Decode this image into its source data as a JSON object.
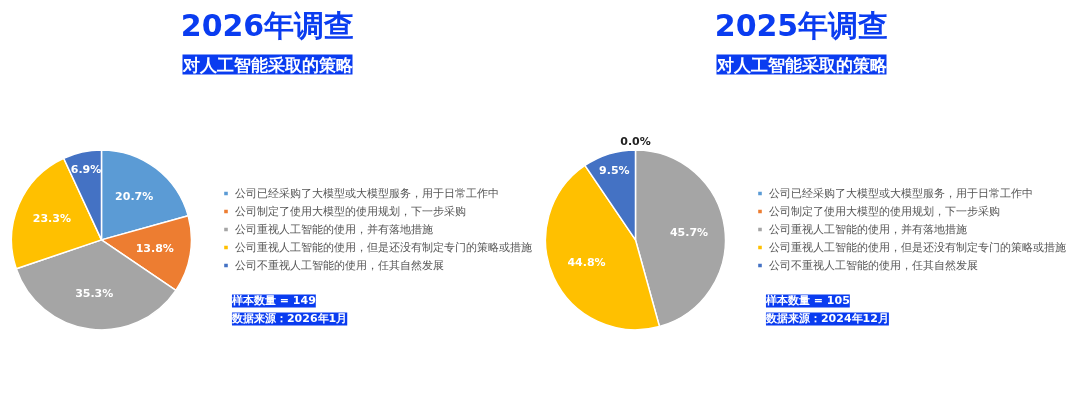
{
  "chart_data": [
    {
      "type": "pie",
      "title": "2026年调查",
      "subtitle": "对人工智能采取的策略",
      "categories": [
        "公司已经采购了大模型或大模型服务，用于日常工作中",
        "公司制定了使用大模型的使用规划，下一步采购",
        "公司重视人工智能的使用，并有落地措施",
        "公司重视人工智能的使用，但是还没有制定专门的策略或措施",
        "公司不重视人工智能的使用，任其自然发展"
      ],
      "values": [
        20.7,
        13.8,
        35.3,
        23.3,
        6.9
      ],
      "value_labels": [
        "20.7%",
        "13.8%",
        "35.3%",
        "23.3%",
        "6.9%"
      ],
      "colors": [
        "#5b9bd5",
        "#ed7d31",
        "#a5a5a5",
        "#ffc000",
        "#4472c4"
      ],
      "legend": "right",
      "annotations": [
        "样本数量 = 149",
        "数据来源：2026年1月"
      ]
    },
    {
      "type": "pie",
      "title": "2025年调查",
      "subtitle": "对人工智能采取的策略",
      "categories": [
        "公司已经采购了大模型或大模型服务，用于日常工作中",
        "公司制定了使用大模型的使用规划，下一步采购",
        "公司重视人工智能的使用，并有落地措施",
        "公司重视人工智能的使用，但是还没有制定专门的策略或措施",
        "公司不重视人工智能的使用，任其自然发展"
      ],
      "values": [
        0.0,
        0.0,
        45.7,
        44.8,
        9.5
      ],
      "value_labels": [
        "0.0%",
        null,
        "45.7%",
        "44.8%",
        "9.5%"
      ],
      "colors": [
        "#5b9bd5",
        "#ed7d31",
        "#a5a5a5",
        "#ffc000",
        "#4472c4"
      ],
      "legend": "right",
      "annotations": [
        "样本数量 = 105",
        "数据来源：2024年12月"
      ]
    }
  ]
}
